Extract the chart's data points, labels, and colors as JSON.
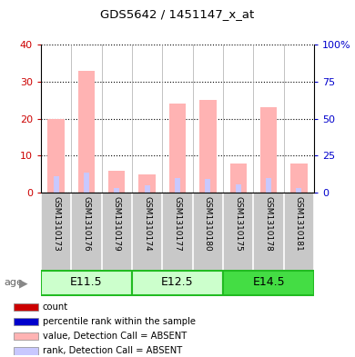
{
  "title": "GDS5642 / 1451147_x_at",
  "samples": [
    "GSM1310173",
    "GSM1310176",
    "GSM1310179",
    "GSM1310174",
    "GSM1310177",
    "GSM1310180",
    "GSM1310175",
    "GSM1310178",
    "GSM1310181"
  ],
  "age_groups": [
    {
      "label": "E11.5",
      "start": 0,
      "end": 3,
      "color": "#b0f0b0"
    },
    {
      "label": "E12.5",
      "start": 3,
      "end": 6,
      "color": "#b0f0b0"
    },
    {
      "label": "E14.5",
      "start": 6,
      "end": 9,
      "color": "#55dd55"
    }
  ],
  "absent_values": [
    20,
    33,
    6,
    5,
    24,
    25,
    8,
    23,
    8
  ],
  "absent_ranks": [
    11,
    13.5,
    3.5,
    5,
    10,
    9.5,
    5.5,
    10,
    3
  ],
  "ylim_left": [
    0,
    40
  ],
  "ylim_right": [
    0,
    100
  ],
  "yticks_left": [
    0,
    10,
    20,
    30,
    40
  ],
  "yticks_right": [
    0,
    25,
    50,
    75,
    100
  ],
  "ytick_labels_right": [
    "0",
    "25",
    "50",
    "75",
    "100%"
  ],
  "color_absent_bar": "#ffb3b3",
  "color_absent_rank": "#c8c8ff",
  "color_count": "#cc0000",
  "color_percentile": "#0000cc",
  "bg_sample": "#c8c8c8",
  "bg_age_e115": "#ccffcc",
  "bg_age_e125": "#ccffcc",
  "bg_age_e145": "#44dd44",
  "age_border": "#22bb22",
  "legend_items": [
    {
      "label": "count",
      "color": "#cc0000"
    },
    {
      "label": "percentile rank within the sample",
      "color": "#0000cc"
    },
    {
      "label": "value, Detection Call = ABSENT",
      "color": "#ffb3b3"
    },
    {
      "label": "rank, Detection Call = ABSENT",
      "color": "#c8c8ff"
    }
  ]
}
